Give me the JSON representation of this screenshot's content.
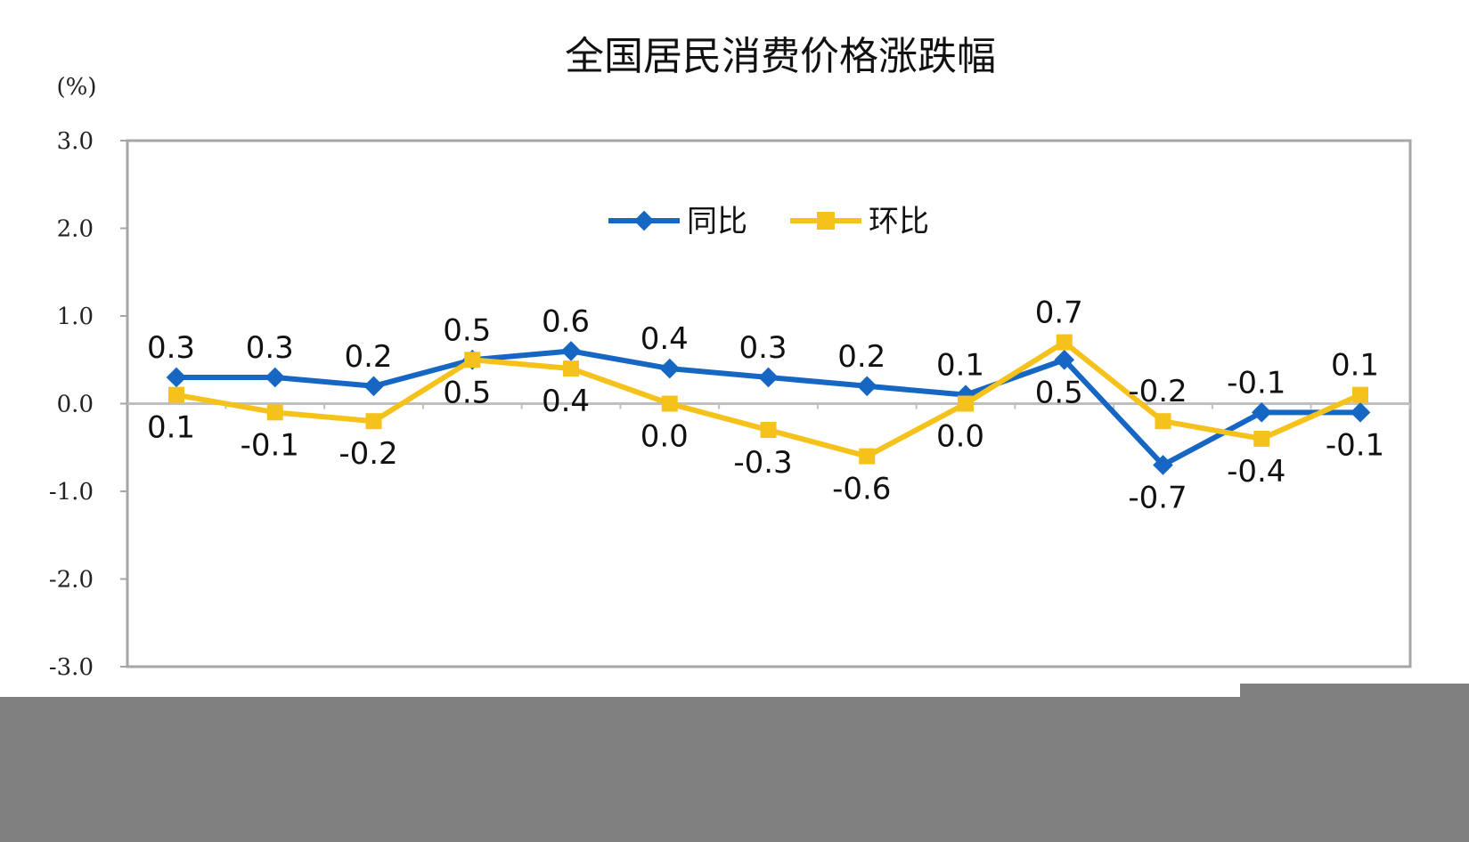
{
  "chart_data": {
    "type": "line",
    "title": "全国居民消费价格涨跌幅",
    "ylabel": "(%)",
    "ylim": [
      -3.0,
      3.0
    ],
    "yticks": [
      "3.0",
      "2.0",
      "1.0",
      "0.0",
      "-1.0",
      "-2.0",
      "-3.0"
    ],
    "ytick_values": [
      3,
      2,
      1,
      0,
      -1,
      -2,
      -3
    ],
    "grid": false,
    "legend_position": "top-center",
    "categories": [
      "",
      "",
      "",
      "",
      "",
      "",
      "",
      "",
      "",
      "",
      "",
      "",
      ""
    ],
    "series": [
      {
        "name": "同比",
        "color": "#1666c3",
        "marker": "diamond",
        "values": [
          0.3,
          0.3,
          0.2,
          0.5,
          0.6,
          0.4,
          0.3,
          0.2,
          0.1,
          0.5,
          -0.7,
          -0.1,
          -0.1
        ],
        "labels": [
          "0.3",
          "0.3",
          "0.2",
          "0.5",
          "0.6",
          "0.4",
          "0.3",
          "0.2",
          "0.1",
          "0.5",
          "-0.7",
          "-0.1",
          "-0.1"
        ]
      },
      {
        "name": "环比",
        "color": "#f5c21b",
        "marker": "square",
        "values": [
          0.1,
          -0.1,
          -0.2,
          0.5,
          0.4,
          0.0,
          -0.3,
          -0.6,
          0.0,
          0.7,
          -0.2,
          -0.4,
          0.1
        ],
        "labels": [
          "0.1",
          "-0.1",
          "-0.2",
          "0.5",
          "0.4",
          "0.0",
          "-0.3",
          "-0.6",
          "0.0",
          "0.7",
          "-0.2",
          "-0.4",
          "0.1"
        ]
      }
    ]
  },
  "colors": {
    "frame": "#a6a6a6",
    "zero_line": "#bfbfbf",
    "occlusion": "#808080"
  }
}
